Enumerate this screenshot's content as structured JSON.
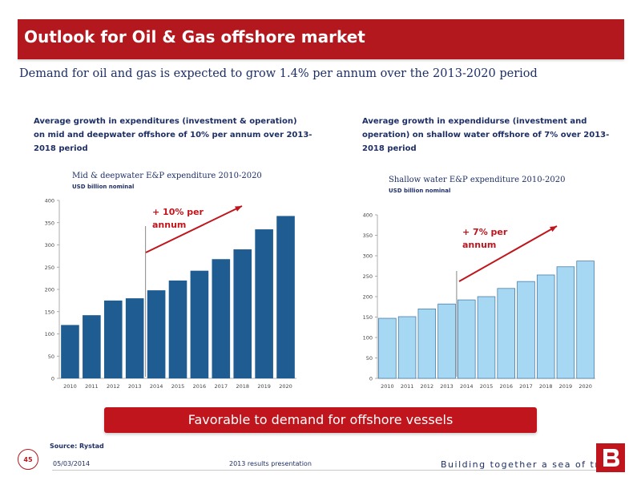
{
  "header": {
    "title": "Outlook for Oil & Gas offshore market"
  },
  "subtitle": "Demand for oil and gas is expected to grow 1.4% per annum over the 2013-2020 period",
  "left_desc": "Average growth in expenditures (investment & operation)\non mid and deepwater offshore of 10% per annum over 2013-\n2018 period",
  "right_desc": "Average growth in expendidurse (investment and\noperation) on shallow water offshore of 7% over 2013-\n2018 period",
  "chart_data": [
    {
      "type": "bar",
      "title": "Mid & deepwater E&P expenditure 2010-2020",
      "subtitle": "USD billion nominal",
      "categories": [
        "2010",
        "2011",
        "2012",
        "2013",
        "2014",
        "2015",
        "2016",
        "2017",
        "2018",
        "2019",
        "2020"
      ],
      "values": [
        120,
        142,
        175,
        180,
        198,
        220,
        242,
        268,
        290,
        335,
        365
      ],
      "ylim": [
        0,
        400
      ],
      "yticks": [
        0,
        50,
        100,
        150,
        200,
        250,
        300,
        350,
        400
      ],
      "grid": false,
      "bar_color": "#1f5c91",
      "annotation": "+ 10% per\nannum",
      "annotation_color": "#c0151c"
    },
    {
      "type": "bar",
      "title": "Shallow water E&P expenditure 2010-2020",
      "subtitle": "USD billion nominal",
      "categories": [
        "2010",
        "2011",
        "2012",
        "2013",
        "2014",
        "2015",
        "2016",
        "2017",
        "2018",
        "2019",
        "2020"
      ],
      "values": [
        147,
        151,
        170,
        182,
        192,
        200,
        220,
        237,
        253,
        273,
        287
      ],
      "ylim": [
        0,
        400
      ],
      "yticks": [
        0,
        50,
        100,
        150,
        200,
        250,
        300,
        350,
        400
      ],
      "grid": false,
      "bar_color": "#a6d8f4",
      "annotation": "+ 7% per\nannum",
      "annotation_color": "#c0151c"
    }
  ],
  "callout": "Favorable to demand for offshore vessels",
  "footer": {
    "source": "Source: Rystad",
    "page_number": "45",
    "date": "05/03/2014",
    "presentation": "2013 results presentation",
    "tagline": "Building together a sea of trust"
  },
  "brand": {
    "primary": "#b3181e",
    "navy": "#1e2f66"
  }
}
